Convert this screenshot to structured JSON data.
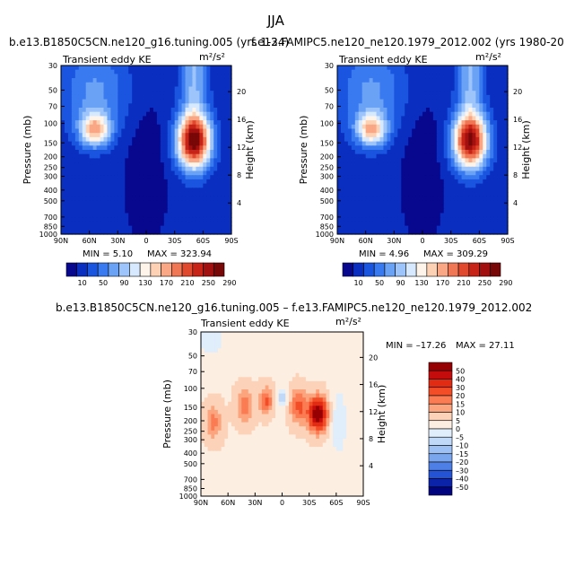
{
  "page_title": "JJA",
  "ylabel": "Pressure  (mb)",
  "ylabel_right": "Height  (km)",
  "pressure_ticks": [
    "30",
    "50",
    "70",
    "100",
    "150",
    "200",
    "250",
    "300",
    "400",
    "500",
    "700",
    "850",
    "1000"
  ],
  "height_ticks": [
    "20",
    "16",
    "12",
    "8",
    "4"
  ],
  "lat_ticks": [
    "90N",
    "60N",
    "30N",
    "0",
    "30S",
    "60S",
    "90S"
  ],
  "chart_data": [
    {
      "type": "heatmap",
      "title": "b.e13.B1850C5CN.ne120_g16.tuning.005 (yrs 1-24)",
      "subtitle_left": "Transient eddy KE",
      "units": "m²/s²",
      "min": 5.1,
      "max": 323.94,
      "min_label": "MIN =    5.10",
      "max_label": "MAX =  323.94",
      "colorbar_labels": [
        "10",
        "50",
        "90",
        "130",
        "170",
        "210",
        "250",
        "290"
      ]
    },
    {
      "type": "heatmap",
      "title": "f.e13.FAMIPC5.ne120_ne120.1979_2012.002 (yrs 1980-20",
      "subtitle_left": "Transient eddy KE",
      "units": "m²/s²",
      "min": 4.96,
      "max": 309.29,
      "min_label": "MIN =    4.96",
      "max_label": "MAX =  309.29",
      "colorbar_labels": [
        "10",
        "50",
        "90",
        "130",
        "170",
        "210",
        "250",
        "290"
      ]
    },
    {
      "type": "heatmap",
      "title": "b.e13.B1850C5CN.ne120_g16.tuning.005 – f.e13.FAMIPC5.ne120_ne120.1979_2012.002",
      "subtitle_left": "Transient eddy KE",
      "units": "m²/s²",
      "min": -17.26,
      "max": 27.11,
      "min_label": "MIN = –17.26",
      "max_label": "MAX =  27.11",
      "colorbar_labels": [
        "50",
        "40",
        "30",
        "20",
        "15",
        "10",
        "5",
        "0",
        "–5",
        "–10",
        "–15",
        "–20",
        "–30",
        "–40",
        "–50"
      ]
    }
  ],
  "colors": {
    "abs_scale": [
      "#08088f",
      "#0a2ec0",
      "#1a55e0",
      "#3a7af0",
      "#6aa3f5",
      "#9ec5fb",
      "#d6e9ff",
      "#fff4ea",
      "#fdd2b4",
      "#f9a784",
      "#f07755",
      "#e0492e",
      "#c72417",
      "#a2100f",
      "#780707"
    ],
    "diff_scale": [
      "#970002",
      "#c40c0c",
      "#e22b13",
      "#f24d27",
      "#fb7b53",
      "#fca47d",
      "#fcd2b8",
      "#fdeee2",
      "#e0edfb",
      "#c1d9f8",
      "#9dc1f4",
      "#7aa6ee",
      "#4e7fe6",
      "#2453d6",
      "#0b23a8",
      "#00047e"
    ]
  }
}
